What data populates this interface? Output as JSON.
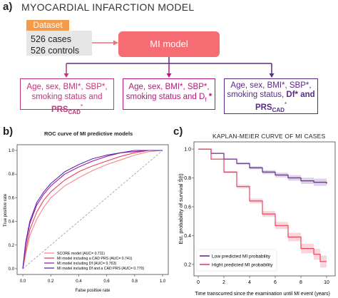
{
  "panel_a": {
    "letter": "a)",
    "title": "MYOCARDIAL INFARCTION MODEL",
    "dataset_label": "Dataset",
    "dataset_cases": "526 cases",
    "dataset_controls": "526 controls",
    "mi_model_label": "MI model",
    "models": [
      {
        "line1": "Age, sex, BMI*, SBP*,",
        "line2": "smoking status and ",
        "bold": "PRS",
        "sub": "CAD",
        "sup": "*",
        "color": "#c0347a"
      },
      {
        "line1": "Age, sex, BMI*, SBP*,",
        "line2": "smoking status and D",
        "sub": "f",
        "bold": " *",
        "color": "#b0187a"
      },
      {
        "line1": "Age, sex, BMI*, SBP*,",
        "line2": "smoking status, ",
        "bold": "Df* and",
        "line3_bold": "PRS",
        "sub": "CAD",
        "sup": "*",
        "color": "#5b2a86"
      }
    ]
  },
  "panel_b": {
    "letter": "b)",
    "title": "ROC curve of  MI predictive models",
    "ylabel": "True positive rate",
    "xlabel": "False positive rate",
    "xticks": [
      "0.0",
      "0.2",
      "0.4",
      "0.6",
      "0.8",
      "1.0"
    ],
    "yticks": [
      "0.0",
      "0.2",
      "0.4",
      "0.6",
      "0.8",
      "1.0"
    ],
    "legend": [
      {
        "label": "SCORE model (AUC= 0.711)",
        "color": "#f08a8a"
      },
      {
        "label": "MI model including a CAD PRS (AUC= 0.741)",
        "color": "#e8435e"
      },
      {
        "label": "MI model including Df (AUC= 0.763)",
        "color": "#a020a0"
      },
      {
        "label": "MI model including Df and a CAD PRS (AUC= 0.770)",
        "color": "#5b2ab0"
      }
    ]
  },
  "panel_c": {
    "letter": "c)",
    "title": "KAPLAN-MEIER CURVE OF MI CASES",
    "ylabel": "Est. probability of survival Ŝ(t)",
    "xlabel": "Time transcurred since the examination until MI event (years)",
    "xticks": [
      "0",
      "2",
      "4",
      "6",
      "8",
      "10"
    ],
    "yticks": [
      "0.2",
      "0.4",
      "0.6",
      "0.8",
      "1.0"
    ],
    "legend": [
      {
        "label": "Low predicted MI probability",
        "color": "#6a2a9a"
      },
      {
        "label": "Hight predicted MI probability",
        "color": "#e8435e"
      }
    ]
  },
  "chart_data": [
    {
      "type": "line",
      "title": "ROC curve of  MI predictive models",
      "xlabel": "False positive rate",
      "ylabel": "True positive rate",
      "xlim": [
        0,
        1
      ],
      "ylim": [
        0,
        1
      ],
      "legend_position": "bottom-right",
      "series": [
        {
          "name": "SCORE model (AUC= 0.711)",
          "color": "#f08a8a",
          "x": [
            0,
            0.02,
            0.05,
            0.1,
            0.15,
            0.2,
            0.3,
            0.4,
            0.5,
            0.6,
            0.7,
            0.8,
            0.9,
            1.0
          ],
          "y": [
            0,
            0.12,
            0.28,
            0.42,
            0.52,
            0.6,
            0.7,
            0.77,
            0.83,
            0.88,
            0.92,
            0.96,
            0.99,
            1.0
          ]
        },
        {
          "name": "MI model including a CAD PRS (AUC= 0.741)",
          "color": "#e8435e",
          "x": [
            0,
            0.02,
            0.05,
            0.1,
            0.15,
            0.2,
            0.3,
            0.4,
            0.5,
            0.6,
            0.7,
            0.8,
            0.9,
            1.0
          ],
          "y": [
            0,
            0.15,
            0.33,
            0.48,
            0.58,
            0.65,
            0.75,
            0.82,
            0.87,
            0.91,
            0.95,
            0.98,
            1.0,
            1.0
          ]
        },
        {
          "name": "MI model including Df (AUC= 0.763)",
          "color": "#a020a0",
          "x": [
            0,
            0.02,
            0.05,
            0.1,
            0.15,
            0.2,
            0.3,
            0.4,
            0.5,
            0.6,
            0.7,
            0.8,
            0.9,
            1.0
          ],
          "y": [
            0,
            0.2,
            0.38,
            0.54,
            0.63,
            0.7,
            0.8,
            0.86,
            0.91,
            0.95,
            0.98,
            0.99,
            1.0,
            1.0
          ]
        },
        {
          "name": "MI model including Df and a CAD PRS (AUC= 0.770)",
          "color": "#5b2ab0",
          "x": [
            0,
            0.02,
            0.05,
            0.1,
            0.15,
            0.2,
            0.3,
            0.4,
            0.5,
            0.6,
            0.7,
            0.8,
            0.9,
            1.0
          ],
          "y": [
            0,
            0.22,
            0.4,
            0.56,
            0.65,
            0.72,
            0.82,
            0.88,
            0.93,
            0.96,
            0.98,
            1.0,
            1.0,
            1.0
          ]
        }
      ]
    },
    {
      "type": "line",
      "title": "KAPLAN-MEIER CURVE OF MI CASES",
      "xlabel": "Time transcurred since the examination until MI event (years)",
      "ylabel": "Est. probability of survival Ŝ(t)",
      "xlim": [
        0,
        10
      ],
      "ylim": [
        0.15,
        1.03
      ],
      "legend_position": "bottom-left",
      "series": [
        {
          "name": "Low predicted MI probability",
          "color": "#6a2a9a",
          "x": [
            0,
            1,
            2,
            3,
            4,
            5,
            6,
            7,
            8,
            9,
            10
          ],
          "y": [
            1.0,
            0.97,
            0.93,
            0.9,
            0.87,
            0.84,
            0.82,
            0.8,
            0.78,
            0.77,
            0.76
          ],
          "band": 0.03
        },
        {
          "name": "Hight predicted MI probability",
          "color": "#e8435e",
          "x": [
            0,
            1,
            2,
            3,
            4,
            5,
            6,
            7,
            8,
            9,
            9.5,
            10
          ],
          "y": [
            1.0,
            0.93,
            0.84,
            0.74,
            0.64,
            0.55,
            0.47,
            0.39,
            0.31,
            0.27,
            0.22,
            0.22
          ],
          "band": 0.05
        }
      ]
    }
  ]
}
